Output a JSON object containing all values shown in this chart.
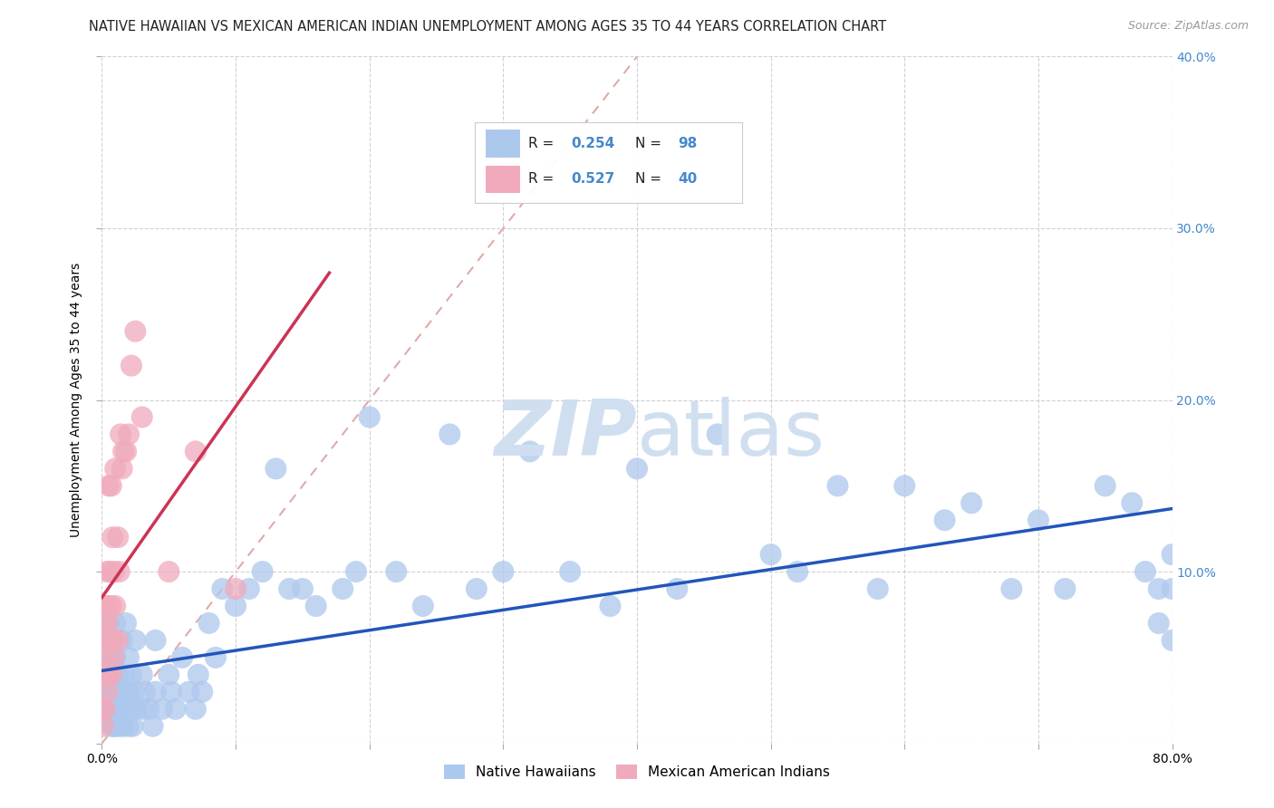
{
  "title": "NATIVE HAWAIIAN VS MEXICAN AMERICAN INDIAN UNEMPLOYMENT AMONG AGES 35 TO 44 YEARS CORRELATION CHART",
  "source": "Source: ZipAtlas.com",
  "ylabel": "Unemployment Among Ages 35 to 44 years",
  "xlim": [
    0.0,
    0.8
  ],
  "ylim": [
    0.0,
    0.4
  ],
  "native_hawaiian_R": 0.254,
  "native_hawaiian_N": 98,
  "mexican_indian_R": 0.527,
  "mexican_indian_N": 40,
  "color_blue": "#adc8ed",
  "color_pink": "#f0aabb",
  "color_blue_text": "#4488cc",
  "trend_blue": "#2255bb",
  "trend_pink": "#cc3355",
  "trend_ref_color": "#e0aaaa",
  "background_color": "#ffffff",
  "watermark_color": "#d0dff0",
  "nh_x": [
    0.005,
    0.005,
    0.005,
    0.005,
    0.005,
    0.007,
    0.007,
    0.007,
    0.007,
    0.008,
    0.008,
    0.008,
    0.009,
    0.009,
    0.01,
    0.01,
    0.01,
    0.01,
    0.01,
    0.012,
    0.012,
    0.013,
    0.013,
    0.015,
    0.015,
    0.016,
    0.016,
    0.017,
    0.018,
    0.018,
    0.019,
    0.02,
    0.02,
    0.02,
    0.021,
    0.022,
    0.023,
    0.024,
    0.025,
    0.025,
    0.03,
    0.03,
    0.032,
    0.035,
    0.038,
    0.04,
    0.04,
    0.045,
    0.05,
    0.052,
    0.055,
    0.06,
    0.065,
    0.07,
    0.072,
    0.075,
    0.08,
    0.085,
    0.09,
    0.1,
    0.11,
    0.12,
    0.13,
    0.14,
    0.15,
    0.16,
    0.18,
    0.19,
    0.2,
    0.22,
    0.24,
    0.26,
    0.28,
    0.3,
    0.32,
    0.35,
    0.38,
    0.4,
    0.43,
    0.46,
    0.5,
    0.52,
    0.55,
    0.58,
    0.6,
    0.63,
    0.65,
    0.68,
    0.7,
    0.72,
    0.75,
    0.77,
    0.78,
    0.79,
    0.79,
    0.8,
    0.8,
    0.8
  ],
  "nh_y": [
    0.02,
    0.03,
    0.04,
    0.06,
    0.07,
    0.01,
    0.02,
    0.04,
    0.05,
    0.02,
    0.03,
    0.05,
    0.01,
    0.04,
    0.01,
    0.02,
    0.03,
    0.05,
    0.07,
    0.02,
    0.04,
    0.01,
    0.03,
    0.02,
    0.06,
    0.01,
    0.04,
    0.02,
    0.03,
    0.07,
    0.02,
    0.01,
    0.03,
    0.05,
    0.02,
    0.04,
    0.01,
    0.03,
    0.02,
    0.06,
    0.02,
    0.04,
    0.03,
    0.02,
    0.01,
    0.03,
    0.06,
    0.02,
    0.04,
    0.03,
    0.02,
    0.05,
    0.03,
    0.02,
    0.04,
    0.03,
    0.07,
    0.05,
    0.09,
    0.08,
    0.09,
    0.1,
    0.16,
    0.09,
    0.09,
    0.08,
    0.09,
    0.1,
    0.19,
    0.1,
    0.08,
    0.18,
    0.09,
    0.1,
    0.17,
    0.1,
    0.08,
    0.16,
    0.09,
    0.18,
    0.11,
    0.1,
    0.15,
    0.09,
    0.15,
    0.13,
    0.14,
    0.09,
    0.13,
    0.09,
    0.15,
    0.14,
    0.1,
    0.09,
    0.07,
    0.09,
    0.06,
    0.11
  ],
  "mi_x": [
    0.001,
    0.001,
    0.001,
    0.002,
    0.002,
    0.002,
    0.003,
    0.003,
    0.003,
    0.004,
    0.004,
    0.004,
    0.005,
    0.005,
    0.005,
    0.006,
    0.006,
    0.007,
    0.007,
    0.007,
    0.008,
    0.008,
    0.009,
    0.009,
    0.01,
    0.01,
    0.012,
    0.012,
    0.013,
    0.014,
    0.015,
    0.016,
    0.018,
    0.02,
    0.022,
    0.025,
    0.03,
    0.05,
    0.07,
    0.1
  ],
  "mi_y": [
    0.01,
    0.02,
    0.04,
    0.02,
    0.05,
    0.07,
    0.04,
    0.06,
    0.08,
    0.03,
    0.07,
    0.1,
    0.04,
    0.08,
    0.15,
    0.06,
    0.1,
    0.04,
    0.08,
    0.15,
    0.06,
    0.12,
    0.05,
    0.1,
    0.08,
    0.16,
    0.06,
    0.12,
    0.1,
    0.18,
    0.16,
    0.17,
    0.17,
    0.18,
    0.22,
    0.24,
    0.19,
    0.1,
    0.17,
    0.09
  ]
}
